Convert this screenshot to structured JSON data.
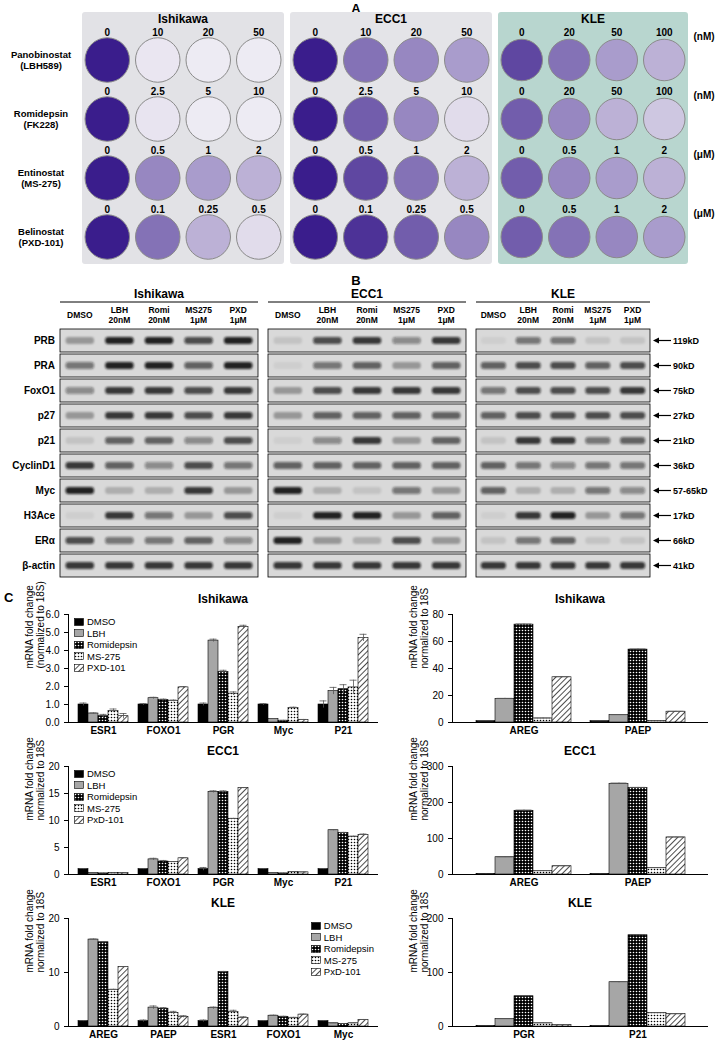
{
  "figure": {
    "panel_labels": [
      "A",
      "B",
      "C"
    ],
    "panel_A": {
      "drugs": [
        "Panobinostat\n(LBH589)",
        "Romidepsin\n(FK228)",
        "Entinostat\n(MS-275)",
        "Belinostat\n(PXD-101)"
      ],
      "units": [
        "(nM)",
        "(nM)",
        "(μM)",
        "(μM)"
      ],
      "plates": [
        {
          "title": "Ishikawa",
          "rows": [
            {
              "concentrations": [
                0,
                10,
                20,
                50
              ],
              "staining": [
                1,
                0.05,
                0.03,
                0.03
              ]
            },
            {
              "concentrations": [
                0,
                2.5,
                5,
                10
              ],
              "staining": [
                1,
                0.06,
                0.03,
                0.03
              ]
            },
            {
              "concentrations": [
                0,
                0.5,
                1,
                2
              ],
              "staining": [
                1,
                0.5,
                0.4,
                0.3
              ]
            },
            {
              "concentrations": [
                0,
                0.1,
                0.25,
                0.5
              ],
              "staining": [
                1,
                0.6,
                0.3,
                0.1
              ]
            }
          ]
        },
        {
          "title": "ECC1",
          "rows": [
            {
              "concentrations": [
                0,
                10,
                20,
                50
              ],
              "staining": [
                1,
                0.6,
                0.5,
                0.4
              ]
            },
            {
              "concentrations": [
                0,
                2.5,
                5,
                10
              ],
              "staining": [
                1,
                0.7,
                0.5,
                0.1
              ]
            },
            {
              "concentrations": [
                0,
                0.5,
                1,
                2
              ],
              "staining": [
                1,
                0.8,
                0.6,
                0.3
              ]
            },
            {
              "concentrations": [
                0,
                0.1,
                0.25,
                0.5
              ],
              "staining": [
                1,
                0.9,
                0.7,
                0.5
              ]
            }
          ]
        },
        {
          "title": "KLE",
          "rows": [
            {
              "concentrations": [
                0,
                20,
                50,
                100
              ],
              "staining": [
                0.8,
                0.6,
                0.4,
                0.3
              ]
            },
            {
              "concentrations": [
                0,
                20,
                50,
                100
              ],
              "staining": [
                0.7,
                0.5,
                0.3,
                0.2
              ]
            },
            {
              "concentrations": [
                0,
                0.5,
                1,
                2
              ],
              "staining": [
                0.7,
                0.5,
                0.4,
                0.3
              ]
            },
            {
              "concentrations": [
                0,
                0.5,
                1,
                2
              ],
              "staining": [
                0.7,
                0.6,
                0.5,
                0.4
              ]
            }
          ]
        }
      ]
    },
    "panel_B": {
      "rows": [
        {
          "label": "PRB",
          "size": "119kD"
        },
        {
          "label": "PRA",
          "size": "90kD"
        },
        {
          "label": "FoxO1",
          "size": "75kD"
        },
        {
          "label": "p27",
          "size": "27kD"
        },
        {
          "label": "p21",
          "size": "21kD"
        },
        {
          "label": "CyclinD1",
          "size": "36kD"
        },
        {
          "label": "Myc",
          "size": "57-65kD"
        },
        {
          "label": "H3Ace",
          "size": "17kD"
        },
        {
          "label": "ERα",
          "size": "66kD"
        },
        {
          "label": "β-actin",
          "size": "41kD"
        }
      ],
      "blots": [
        {
          "title": "Ishikawa",
          "lanes": [
            "DMSO",
            "LBH\n20nM",
            "Romi\n20nM",
            "MS275\n1μM",
            "PXD\n1μM"
          ],
          "bands": [
            [
              0.3,
              0.9,
              0.9,
              0.7,
              0.9
            ],
            [
              0.5,
              0.9,
              0.9,
              0.6,
              0.9
            ],
            [
              0.4,
              0.8,
              0.8,
              0.7,
              0.8
            ],
            [
              0.3,
              0.8,
              0.8,
              0.7,
              0.8
            ],
            [
              0.1,
              0.6,
              0.6,
              0.4,
              0.7
            ],
            [
              0.8,
              0.6,
              0.4,
              0.7,
              0.5
            ],
            [
              0.9,
              0.2,
              0.2,
              0.8,
              0.3
            ],
            [
              0.05,
              0.8,
              0.5,
              0.3,
              0.7
            ],
            [
              0.7,
              0.5,
              0.5,
              0.6,
              0.4
            ],
            [
              0.8,
              0.8,
              0.8,
              0.8,
              0.8
            ]
          ]
        },
        {
          "title": "ECC1",
          "lanes": [
            "DMSO",
            "LBH\n20nM",
            "Romi\n20nM",
            "MS275\n1μM",
            "PXD\n1μM"
          ],
          "bands": [
            [
              0.1,
              0.7,
              0.8,
              0.4,
              0.8
            ],
            [
              0.05,
              0.5,
              0.6,
              0.3,
              0.6
            ],
            [
              0.3,
              0.7,
              0.8,
              0.8,
              0.8
            ],
            [
              0.3,
              0.6,
              0.6,
              0.6,
              0.6
            ],
            [
              0.05,
              0.4,
              0.8,
              0.3,
              0.6
            ],
            [
              0.6,
              0.6,
              0.6,
              0.6,
              0.6
            ],
            [
              0.9,
              0.2,
              0.1,
              0.5,
              0.3
            ],
            [
              0.05,
              0.9,
              0.9,
              0.3,
              0.6
            ],
            [
              0.9,
              0.3,
              0.2,
              0.7,
              0.3
            ],
            [
              0.8,
              0.8,
              0.8,
              0.8,
              0.8
            ]
          ]
        },
        {
          "title": "KLE",
          "lanes": [
            "DMSO",
            "LBH\n20nM",
            "Romi\n20nM",
            "MS275\n1μM",
            "PXD\n1μM"
          ],
          "bands": [
            [
              0.05,
              0.5,
              0.5,
              0.1,
              0.1
            ],
            [
              0.6,
              0.7,
              0.7,
              0.6,
              0.7
            ],
            [
              0.5,
              0.7,
              0.7,
              0.7,
              0.8
            ],
            [
              0.6,
              0.7,
              0.7,
              0.7,
              0.7
            ],
            [
              0.1,
              0.8,
              0.8,
              0.5,
              0.6
            ],
            [
              0.6,
              0.5,
              0.4,
              0.5,
              0.5
            ],
            [
              0.6,
              0.2,
              0.2,
              0.5,
              0.4
            ],
            [
              0.05,
              0.8,
              0.9,
              0.3,
              0.5
            ],
            [
              0.1,
              0.5,
              0.6,
              0.1,
              0.1
            ],
            [
              0.8,
              0.8,
              0.8,
              0.8,
              0.8
            ]
          ]
        }
      ]
    }
  },
  "chart_data": [
    {
      "type": "bar",
      "title": "Ishikawa",
      "y_label": "mRNA fold change\n(normalized to 18S)",
      "categories": [
        "ESR1",
        "FOXO1",
        "PGR",
        "Myc",
        "P21"
      ],
      "ylim": [
        0,
        6
      ],
      "yticks": [
        0,
        1,
        2,
        3,
        4,
        5,
        6
      ],
      "legend": "upper left",
      "series": [
        {
          "name": "DMSO",
          "color": "#000000",
          "marker": "solid",
          "values": [
            1,
            1,
            1,
            1,
            1
          ],
          "errors": [
            0.08,
            0.05,
            0.08,
            0.05,
            0.2
          ]
        },
        {
          "name": "LBH",
          "color": "#a6a6a6",
          "marker": "solid",
          "values": [
            0.5,
            1.35,
            4.55,
            0.2,
            1.75
          ],
          "errors": [
            0.03,
            0.05,
            0.08,
            0.02,
            0.2
          ]
        },
        {
          "name": "Romidepsin",
          "color": "#000000",
          "marker": "dots",
          "values": [
            0.35,
            1.25,
            2.8,
            0.1,
            1.85
          ],
          "errors": [
            0.1,
            0.05,
            0.1,
            0.02,
            0.25
          ]
        },
        {
          "name": "MS-275",
          "color": "#ffffff",
          "marker": "dots",
          "values": [
            0.65,
            1.2,
            1.6,
            0.8,
            1.95
          ],
          "errors": [
            0.1,
            0.05,
            0.1,
            0.05,
            0.4
          ]
        },
        {
          "name": "PXD-101",
          "color": "#ffffff",
          "marker": "hatch",
          "values": [
            0.35,
            1.95,
            5.3,
            0.15,
            4.7
          ],
          "errors": [
            0.15,
            0.05,
            0.1,
            0.02,
            0.2
          ]
        }
      ]
    },
    {
      "type": "bar",
      "title": "Ishikawa",
      "y_label": "mRNA fold change\nnormalized to 18S",
      "categories": [
        "AREG",
        "PAEP"
      ],
      "ylim": [
        0,
        80
      ],
      "yticks": [
        0,
        20,
        40,
        60,
        80
      ],
      "series": [
        {
          "color": "#000000",
          "marker": "solid",
          "values": [
            1,
            1
          ],
          "errors": [
            0.2,
            0.2
          ]
        },
        {
          "color": "#a6a6a6",
          "marker": "solid",
          "values": [
            17.5,
            5.5
          ],
          "errors": [
            0.4,
            0.3
          ]
        },
        {
          "color": "#000000",
          "marker": "dots",
          "values": [
            72.5,
            54
          ],
          "errors": [
            0.5,
            0.5
          ]
        },
        {
          "color": "#ffffff",
          "marker": "dots",
          "values": [
            3,
            1.2
          ],
          "errors": [
            0.3,
            0.2
          ]
        },
        {
          "color": "#ffffff",
          "marker": "hatch",
          "values": [
            33.5,
            8
          ],
          "errors": [
            0.4,
            0.3
          ]
        }
      ]
    },
    {
      "type": "bar",
      "title": "ECC1",
      "y_label": "mRNA fold change\nnormalized to 18S",
      "categories": [
        "ESR1",
        "FOXO1",
        "PGR",
        "Myc",
        "P21"
      ],
      "ylim": [
        0,
        20
      ],
      "yticks": [
        0,
        5,
        10,
        15,
        20
      ],
      "legend": "upper left",
      "series": [
        {
          "name": "DMSO",
          "color": "#000000",
          "marker": "solid",
          "values": [
            1,
            1,
            1,
            1,
            1
          ],
          "errors": [
            0.1,
            0.1,
            0.3,
            0.1,
            0.1
          ]
        },
        {
          "name": "LBH",
          "color": "#a6a6a6",
          "marker": "solid",
          "values": [
            0.3,
            2.8,
            15.3,
            0.3,
            8.2
          ],
          "errors": [
            0.05,
            0.2,
            0.2,
            0.05,
            0.1
          ]
        },
        {
          "name": "Romidepsin",
          "color": "#000000",
          "marker": "dots",
          "values": [
            0.2,
            2.4,
            15.3,
            0.2,
            7.7
          ],
          "errors": [
            0.05,
            0.2,
            0.2,
            0.05,
            0.1
          ]
        },
        {
          "name": "MS-275",
          "color": "#ffffff",
          "marker": "dots",
          "values": [
            0.3,
            2.3,
            10.3,
            0.5,
            7
          ],
          "errors": [
            0.05,
            0.1,
            0.1,
            0.05,
            0.1
          ]
        },
        {
          "name": "PxD-101",
          "color": "#ffffff",
          "marker": "hatch",
          "values": [
            0.3,
            3,
            16,
            0.4,
            7.3
          ],
          "errors": [
            0.05,
            0.1,
            0.1,
            0.05,
            0.2
          ]
        }
      ]
    },
    {
      "type": "bar",
      "title": "ECC1",
      "y_label": "mRNA fold change\nnormalized to 18S",
      "categories": [
        "AREG",
        "PAEP"
      ],
      "ylim": [
        0,
        300
      ],
      "yticks": [
        0,
        100,
        200,
        300
      ],
      "series": [
        {
          "color": "#000000",
          "marker": "solid",
          "values": [
            1,
            1
          ],
          "errors": [
            0.5,
            0.5
          ]
        },
        {
          "color": "#a6a6a6",
          "marker": "solid",
          "values": [
            48,
            252
          ],
          "errors": [
            1,
            2
          ]
        },
        {
          "color": "#000000",
          "marker": "dots",
          "values": [
            177,
            240
          ],
          "errors": [
            2,
            2
          ]
        },
        {
          "color": "#ffffff",
          "marker": "dots",
          "values": [
            10,
            18
          ],
          "errors": [
            0.5,
            1
          ]
        },
        {
          "color": "#ffffff",
          "marker": "hatch",
          "values": [
            23,
            103
          ],
          "errors": [
            1,
            1
          ]
        }
      ]
    },
    {
      "type": "bar",
      "title": "KLE",
      "y_label": "mRNA fold change\nnormalized to 18S",
      "categories": [
        "AREG",
        "PAEP",
        "ESR1",
        "FOXO1",
        "Myc"
      ],
      "ylim": [
        0,
        20
      ],
      "yticks": [
        0,
        10,
        20
      ],
      "legend": "upper right",
      "series": [
        {
          "name": "DMSO",
          "color": "#000000",
          "marker": "solid",
          "values": [
            1,
            1,
            1,
            1,
            1
          ],
          "errors": [
            0.1,
            0.2,
            0.2,
            0.1,
            0.1
          ]
        },
        {
          "name": "LBH",
          "color": "#a6a6a6",
          "marker": "solid",
          "values": [
            16.1,
            3.5,
            3.4,
            2,
            0.6
          ],
          "errors": [
            0.1,
            0.3,
            0.2,
            0.1,
            0.05
          ]
        },
        {
          "name": "Romidepsin",
          "color": "#000000",
          "marker": "dots",
          "values": [
            15.6,
            3.3,
            10.1,
            1.8,
            0.5
          ],
          "errors": [
            0.1,
            0.2,
            0.1,
            0.1,
            0.05
          ]
        },
        {
          "name": "MS-275",
          "color": "#ffffff",
          "marker": "dots",
          "values": [
            6.8,
            2.5,
            2.7,
            1.6,
            0.6
          ],
          "errors": [
            0.1,
            0.3,
            0.3,
            0.1,
            0.05
          ]
        },
        {
          "name": "PxD-101",
          "color": "#ffffff",
          "marker": "hatch",
          "values": [
            11,
            1.8,
            1.6,
            2.2,
            1.2
          ],
          "errors": [
            0.1,
            0.2,
            0.2,
            0.1,
            0.1
          ]
        }
      ]
    },
    {
      "type": "bar",
      "title": "KLE",
      "y_label": "mRNA fold change\nnormalized to 18S",
      "categories": [
        "PGR",
        "P21"
      ],
      "ylim": [
        0,
        200
      ],
      "yticks": [
        0,
        100,
        200
      ],
      "series": [
        {
          "color": "#000000",
          "marker": "solid",
          "values": [
            1,
            1
          ],
          "errors": [
            0.3,
            0.3
          ]
        },
        {
          "color": "#a6a6a6",
          "marker": "solid",
          "values": [
            14,
            82
          ],
          "errors": [
            0.5,
            1
          ]
        },
        {
          "color": "#000000",
          "marker": "dots",
          "values": [
            56,
            169
          ],
          "errors": [
            1,
            1
          ]
        },
        {
          "color": "#ffffff",
          "marker": "dots",
          "values": [
            6,
            25
          ],
          "errors": [
            0.5,
            0.5
          ]
        },
        {
          "color": "#ffffff",
          "marker": "hatch",
          "values": [
            3,
            23
          ],
          "errors": [
            0.3,
            0.5
          ]
        }
      ]
    }
  ]
}
